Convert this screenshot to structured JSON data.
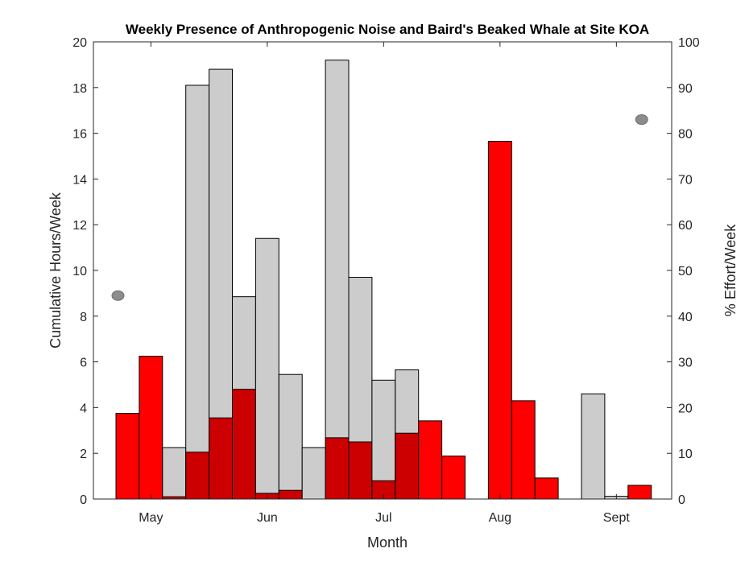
{
  "chart_data": {
    "type": "bar",
    "title": "Weekly Presence of Anthropogenic Noise and Baird's Beaked Whale at Site KOA",
    "xlabel": "Month",
    "ylabel_left": "Cumulative Hours/Week",
    "ylabel_right": "% Effort/Week",
    "ylim_left": [
      0,
      20
    ],
    "ylim_right": [
      0,
      100
    ],
    "yticks_left": [
      0,
      2,
      4,
      6,
      8,
      10,
      12,
      14,
      16,
      18,
      20
    ],
    "yticks_right": [
      0,
      10,
      20,
      30,
      40,
      50,
      60,
      70,
      80,
      90,
      100
    ],
    "month_ticks": [
      {
        "label": "May",
        "week": 1.5
      },
      {
        "label": "Jun",
        "week": 6.5
      },
      {
        "label": "Jul",
        "week": 11.5
      },
      {
        "label": "Aug",
        "week": 16.5
      },
      {
        "label": "Sept",
        "week": 21.5
      }
    ],
    "weeks": [
      0,
      1,
      2,
      3,
      4,
      5,
      6,
      7,
      8,
      9,
      10,
      11,
      12,
      13,
      14,
      15,
      16,
      17,
      18,
      19,
      20,
      21,
      22
    ],
    "series": [
      {
        "values": [
          0,
          0,
          2.25,
          18.1,
          18.8,
          8.85,
          11.4,
          5.45,
          2.25,
          19.2,
          9.7,
          5.2,
          5.65,
          0,
          0,
          0,
          0,
          0,
          0,
          0,
          4.6,
          0.12,
          0
        ],
        "color": "#cccccc"
      },
      {
        "values": [
          3.75,
          6.25,
          0.1,
          2.05,
          3.55,
          4.8,
          0.25,
          0.38,
          0,
          2.68,
          2.5,
          0.8,
          2.88,
          3.42,
          1.88,
          0,
          15.65,
          4.3,
          0.92,
          0,
          0,
          0,
          0.6
        ],
        "color": "#ff0000",
        "overlap_color": "#cc0000"
      },
      {
        "points": [
          {
            "week": 0,
            "value": 44.5
          },
          {
            "week": 22.5,
            "value": 83
          }
        ],
        "color": "#8c8c8c",
        "axis": "right"
      }
    ],
    "grid": false,
    "legend": "none"
  }
}
